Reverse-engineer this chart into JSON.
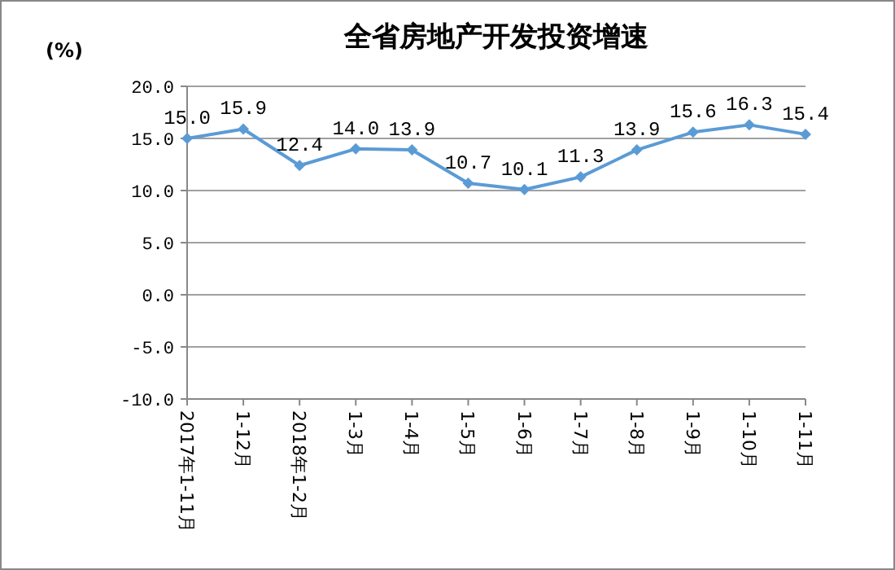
{
  "chart_data": {
    "type": "line",
    "title": "全省房地产开发投资增速",
    "ylabel": "(%)",
    "categories": [
      "2017年1-11月",
      "1-12月",
      "2018年1-2月",
      "1-3月",
      "1-4月",
      "1-5月",
      "1-6月",
      "1-7月",
      "1-8月",
      "1-9月",
      "1-10月",
      "1-11月"
    ],
    "series": [
      {
        "color": "#5b9bd5",
        "values": [
          15.0,
          15.9,
          12.4,
          14.0,
          13.9,
          10.7,
          10.1,
          11.3,
          13.9,
          15.6,
          16.3,
          15.4
        ],
        "value_labels": [
          "15.0",
          "15.9",
          "12.4",
          "14.0",
          "13.9",
          "10.7",
          "10.1",
          "11.3",
          "13.9",
          "15.6",
          "16.3",
          "15.4"
        ]
      }
    ],
    "ylim": [
      -10,
      20
    ],
    "yticks": [
      {
        "value": -10,
        "label": "-10.0"
      },
      {
        "value": -5,
        "label": "-5.0"
      },
      {
        "value": 0,
        "label": "0.0"
      },
      {
        "value": 5,
        "label": "5.0"
      },
      {
        "value": 10,
        "label": "10.0"
      },
      {
        "value": 15,
        "label": "15.0"
      },
      {
        "value": 20,
        "label": "20.0"
      }
    ],
    "grid": "y",
    "marker": "diamond",
    "line_style": "solid"
  }
}
